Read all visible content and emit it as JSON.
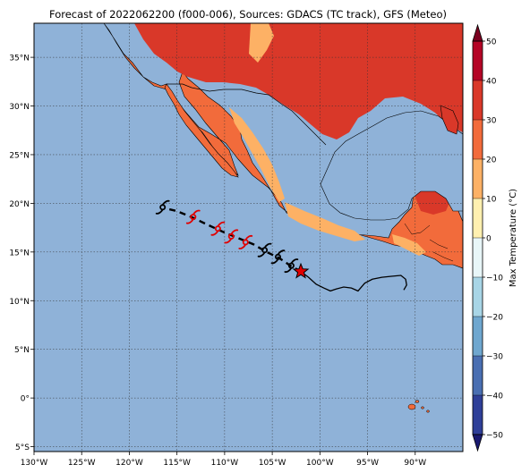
{
  "title": "Forecast of 2022062200 (f000-006), Sources: GDACS (TC track), GFS (Meteo)",
  "map": {
    "lon_range": [
      -130,
      -85
    ],
    "lat_range": [
      -5.5,
      38.5
    ],
    "lon_ticks": [
      {
        "value": -130,
        "label": "130°W"
      },
      {
        "value": -125,
        "label": "125°W"
      },
      {
        "value": -120,
        "label": "120°W"
      },
      {
        "value": -115,
        "label": "115°W"
      },
      {
        "value": -110,
        "label": "110°W"
      },
      {
        "value": -105,
        "label": "105°W"
      },
      {
        "value": -100,
        "label": "100°W"
      },
      {
        "value": -95,
        "label": "95°W"
      },
      {
        "value": -90,
        "label": "90°W"
      }
    ],
    "lat_ticks": [
      {
        "value": 35,
        "label": "35°N"
      },
      {
        "value": 30,
        "label": "30°N"
      },
      {
        "value": 25,
        "label": "25°N"
      },
      {
        "value": 20,
        "label": "20°N"
      },
      {
        "value": 15,
        "label": "15°N"
      },
      {
        "value": 10,
        "label": "10°N"
      },
      {
        "value": 5,
        "label": "5°N"
      },
      {
        "value": 0,
        "label": "0°"
      },
      {
        "value": -5,
        "label": "5°S"
      }
    ],
    "grid": true,
    "ocean_color": "#8fb2d8"
  },
  "track": {
    "current_position": {
      "lon": -102.0,
      "lat": 13.0
    },
    "past_track": [
      [
        -102.0,
        13.0
      ],
      [
        -101.2,
        12.4
      ],
      [
        -100.4,
        11.7
      ],
      [
        -99.6,
        11.3
      ],
      [
        -98.9,
        11.0
      ],
      [
        -98.3,
        11.2
      ],
      [
        -97.5,
        11.4
      ],
      [
        -96.7,
        11.3
      ],
      [
        -96.0,
        11.0
      ],
      [
        -95.3,
        11.8
      ],
      [
        -94.5,
        12.2
      ],
      [
        -93.5,
        12.4
      ],
      [
        -92.5,
        12.5
      ],
      [
        -91.5,
        12.6
      ],
      [
        -91.0,
        12.2
      ],
      [
        -90.9,
        11.6
      ],
      [
        -91.2,
        11.1
      ]
    ],
    "forecast_track": [
      [
        -102.0,
        13.0
      ],
      [
        -103.1,
        13.6
      ],
      [
        -104.3,
        14.4
      ],
      [
        -105.6,
        15.0
      ],
      [
        -107.0,
        15.8
      ],
      [
        -108.5,
        16.4
      ],
      [
        -110.0,
        17.0
      ],
      [
        -111.8,
        17.8
      ],
      [
        -113.5,
        18.6
      ],
      [
        -115.0,
        19.2
      ],
      [
        -116.3,
        19.5
      ]
    ],
    "forecast_symbols": [
      {
        "lon": -103.0,
        "lat": 13.6,
        "color": "#000000"
      },
      {
        "lon": -104.4,
        "lat": 14.5,
        "color": "#000000"
      },
      {
        "lon": -105.8,
        "lat": 15.2,
        "color": "#000000"
      },
      {
        "lon": -107.8,
        "lat": 16.0,
        "color": "#e00000"
      },
      {
        "lon": -109.3,
        "lat": 16.6,
        "color": "#e00000"
      },
      {
        "lon": -110.7,
        "lat": 17.4,
        "color": "#e00000"
      },
      {
        "lon": -113.3,
        "lat": 18.6,
        "color": "#e00000"
      },
      {
        "lon": -116.5,
        "lat": 19.6,
        "color": "#000000"
      }
    ]
  },
  "colorbar": {
    "label": "Max Temperature (°C)",
    "min": -50,
    "max": 50,
    "ticks": [
      {
        "value": 50,
        "label": "50"
      },
      {
        "value": 40,
        "label": "40"
      },
      {
        "value": 30,
        "label": "30"
      },
      {
        "value": 20,
        "label": "20"
      },
      {
        "value": 10,
        "label": "10"
      },
      {
        "value": 0,
        "label": "0"
      },
      {
        "value": -10,
        "label": "−10"
      },
      {
        "value": -20,
        "label": "−20"
      },
      {
        "value": -30,
        "label": "−30"
      },
      {
        "value": -40,
        "label": "−40"
      },
      {
        "value": -50,
        "label": "−50"
      }
    ],
    "levels": [
      {
        "from": 40,
        "to": 50,
        "color": "#b40426"
      },
      {
        "from": 30,
        "to": 40,
        "color": "#d93829"
      },
      {
        "from": 20,
        "to": 30,
        "color": "#f26b3b"
      },
      {
        "from": 10,
        "to": 20,
        "color": "#fdb165"
      },
      {
        "from": 0,
        "to": 10,
        "color": "#fff0b0"
      },
      {
        "from": -10,
        "to": 0,
        "color": "#e8f6f8"
      },
      {
        "from": -20,
        "to": -10,
        "color": "#a8d5e6"
      },
      {
        "from": -30,
        "to": -20,
        "color": "#6fa7cf"
      },
      {
        "from": -40,
        "to": -30,
        "color": "#4a6fb2"
      },
      {
        "from": -50,
        "to": -40,
        "color": "#2f3f98"
      }
    ],
    "extend_high_color": "#7a0020",
    "extend_low_color": "#1a1a70"
  }
}
